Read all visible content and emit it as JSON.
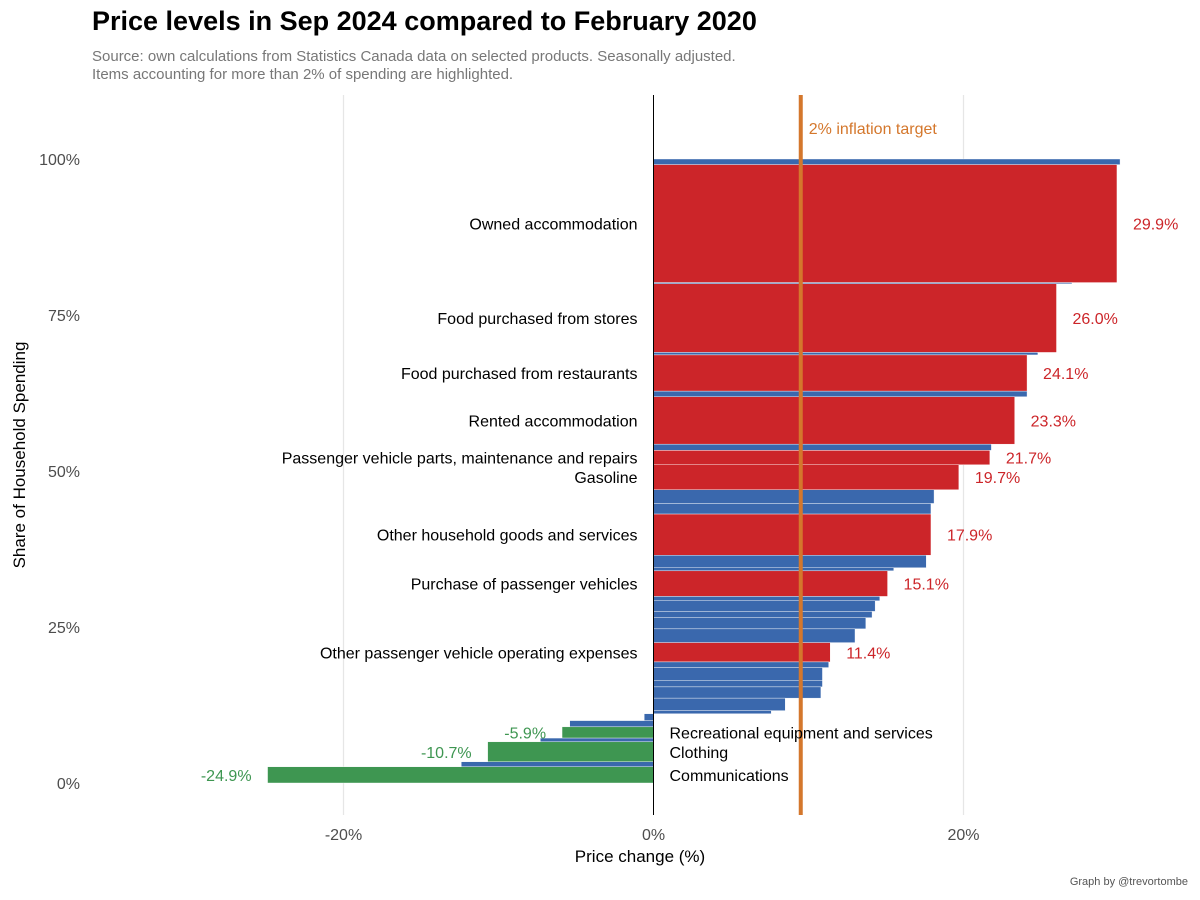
{
  "title": "Price levels in Sep 2024 compared to February 2020",
  "subtitle_lines": [
    "Source: own calculations from Statistics Canada data on selected products. Seasonally adjusted.",
    "Items accounting for more than 2% of spending are highlighted."
  ],
  "caption": "Graph by @trevortombe",
  "colors": {
    "highlight_positive": "#cc2529",
    "highlight_negative": "#3e9651",
    "other": "#3a68ad",
    "target_line": "#d4772c",
    "grid": "#e6e6e6",
    "axis_text": "#4d4d4d"
  },
  "chart_data": {
    "type": "bar",
    "orientation": "horizontal-variable-width",
    "xlabel": "Price change (%)",
    "ylabel": "Share of Household Spending",
    "xlim": [
      -30,
      31
    ],
    "ylim": [
      -5,
      110
    ],
    "x_ticks": [
      -20,
      0,
      20
    ],
    "x_tick_labels": [
      "-20%",
      "0%",
      "20%"
    ],
    "y_ticks": [
      0,
      25,
      50,
      75,
      100
    ],
    "y_tick_labels": [
      "0%",
      "25%",
      "50%",
      "75%",
      "100%"
    ],
    "grid": "vertical major lines only",
    "reference_line": {
      "x": 9.5,
      "label": "2% inflation target"
    },
    "bars": [
      {
        "value": 30.1,
        "y0": 99.1,
        "y1": 100.0,
        "highlight": false
      },
      {
        "value": 29.9,
        "y0": 80.2,
        "y1": 99.1,
        "highlight": true,
        "label": "Owned accommodation",
        "value_label": "29.9%"
      },
      {
        "value": 27.0,
        "y0": 80.0,
        "y1": 80.2,
        "highlight": false
      },
      {
        "value": 26.0,
        "y0": 69.0,
        "y1": 80.0,
        "highlight": true,
        "label": "Food purchased from stores",
        "value_label": "26.0%"
      },
      {
        "value": 24.8,
        "y0": 68.6,
        "y1": 69.0,
        "highlight": false
      },
      {
        "value": 24.1,
        "y0": 62.8,
        "y1": 68.6,
        "highlight": true,
        "label": "Food purchased from restaurants",
        "value_label": "24.1%"
      },
      {
        "value": 24.1,
        "y0": 61.9,
        "y1": 62.8,
        "highlight": false
      },
      {
        "value": 23.3,
        "y0": 54.3,
        "y1": 61.9,
        "highlight": true,
        "label": "Rented accommodation",
        "value_label": "23.3%"
      },
      {
        "value": 21.8,
        "y0": 53.3,
        "y1": 54.3,
        "highlight": false
      },
      {
        "value": 21.7,
        "y0": 51.0,
        "y1": 53.3,
        "highlight": true,
        "label": "Passenger vehicle parts, maintenance and repairs",
        "value_label": "21.7%"
      },
      {
        "value": 19.7,
        "y0": 47.0,
        "y1": 51.0,
        "highlight": true,
        "label": "Gasoline",
        "value_label": "19.7%"
      },
      {
        "value": 18.1,
        "y0": 44.8,
        "y1": 47.0,
        "highlight": false
      },
      {
        "value": 17.9,
        "y0": 43.1,
        "y1": 44.8,
        "highlight": false
      },
      {
        "value": 17.9,
        "y0": 36.5,
        "y1": 43.1,
        "highlight": true,
        "label": "Other household goods and services",
        "value_label": "17.9%"
      },
      {
        "value": 17.6,
        "y0": 34.5,
        "y1": 36.5,
        "highlight": false
      },
      {
        "value": 15.5,
        "y0": 34.0,
        "y1": 34.5,
        "highlight": false
      },
      {
        "value": 15.1,
        "y0": 29.9,
        "y1": 34.0,
        "highlight": true,
        "label": "Purchase of passenger vehicles",
        "value_label": "15.1%"
      },
      {
        "value": 14.6,
        "y0": 29.2,
        "y1": 29.9,
        "highlight": false
      },
      {
        "value": 14.3,
        "y0": 27.5,
        "y1": 29.2,
        "highlight": false
      },
      {
        "value": 14.1,
        "y0": 26.5,
        "y1": 27.5,
        "highlight": false
      },
      {
        "value": 13.7,
        "y0": 24.7,
        "y1": 26.5,
        "highlight": false
      },
      {
        "value": 13.0,
        "y0": 22.5,
        "y1": 24.7,
        "highlight": false
      },
      {
        "value": 11.4,
        "y0": 19.4,
        "y1": 22.5,
        "highlight": true,
        "label": "Other passenger vehicle operating expenses",
        "value_label": "11.4%"
      },
      {
        "value": 11.3,
        "y0": 18.5,
        "y1": 19.4,
        "highlight": false
      },
      {
        "value": 10.9,
        "y0": 16.4,
        "y1": 18.5,
        "highlight": false
      },
      {
        "value": 10.9,
        "y0": 15.4,
        "y1": 16.4,
        "highlight": false
      },
      {
        "value": 10.8,
        "y0": 13.6,
        "y1": 15.4,
        "highlight": false
      },
      {
        "value": 8.5,
        "y0": 11.6,
        "y1": 13.6,
        "highlight": false
      },
      {
        "value": 7.6,
        "y0": 11.1,
        "y1": 11.6,
        "highlight": false
      },
      {
        "value": -0.6,
        "y0": 10.0,
        "y1": 11.1,
        "highlight": false
      },
      {
        "value": -5.4,
        "y0": 9.0,
        "y1": 10.0,
        "highlight": false
      },
      {
        "value": -5.9,
        "y0": 7.2,
        "y1": 9.0,
        "highlight": true,
        "label": "Recreational equipment and services",
        "value_label": "-5.9%"
      },
      {
        "value": -7.3,
        "y0": 6.6,
        "y1": 7.2,
        "highlight": false
      },
      {
        "value": -10.7,
        "y0": 3.4,
        "y1": 6.6,
        "highlight": true,
        "label": "Clothing",
        "value_label": "-10.7%"
      },
      {
        "value": -12.4,
        "y0": 2.6,
        "y1": 3.4,
        "highlight": false
      },
      {
        "value": -24.9,
        "y0": 0.0,
        "y1": 2.6,
        "highlight": true,
        "label": "Communications",
        "value_label": "-24.9%"
      }
    ]
  }
}
